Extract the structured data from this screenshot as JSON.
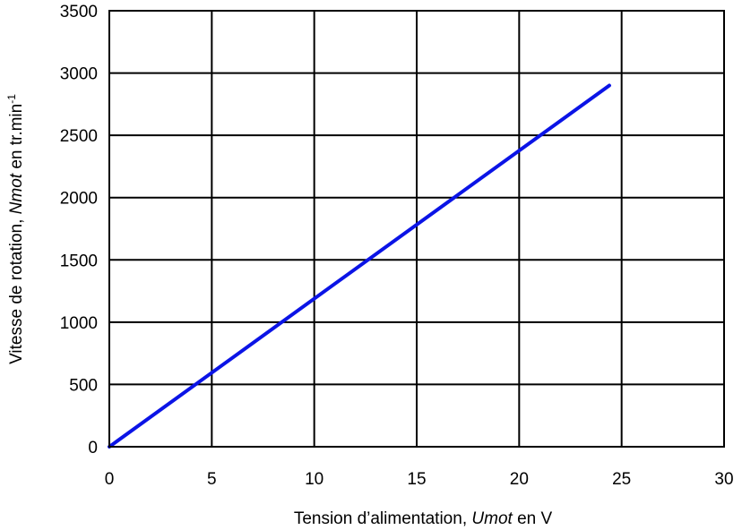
{
  "chart_data": {
    "type": "line",
    "title": "",
    "xlabel_parts": {
      "pre": "Tension d’alimentation, ",
      "ital": "Umot",
      "post": " en V"
    },
    "ylabel_parts": {
      "pre": "Vitesse de rotation, ",
      "ital": "Nmot",
      "post": " en tr.min",
      "sup": "-1"
    },
    "xlim": [
      0,
      30
    ],
    "ylim": [
      0,
      3500
    ],
    "x_ticks": [
      0,
      5,
      10,
      15,
      20,
      25,
      30
    ],
    "y_ticks": [
      0,
      500,
      1000,
      1500,
      2000,
      2500,
      3000,
      3500
    ],
    "grid": true,
    "legend": "none",
    "series": [
      {
        "color": "#0b14e6",
        "x": [
          0,
          24.4
        ],
        "y": [
          0,
          2900
        ]
      }
    ]
  }
}
